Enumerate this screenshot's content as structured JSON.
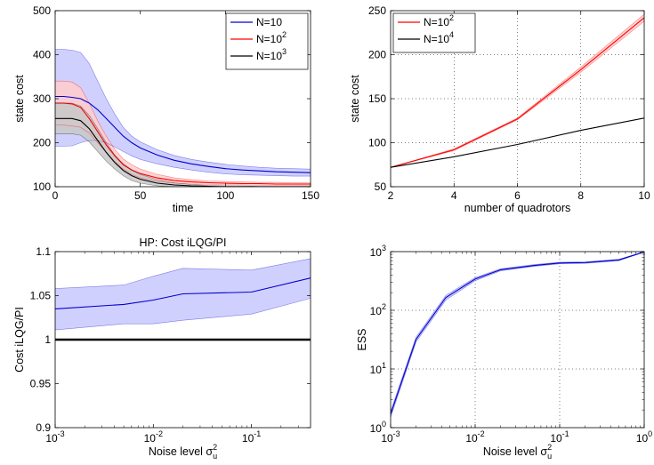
{
  "colors": {
    "blue": "#0000cc",
    "blue_fill": "#c8c8ff",
    "red": "#ff0000",
    "red_fill": "#ffcccc",
    "black": "#000000",
    "gray_fill": "#c8c8c8"
  },
  "chart_data": [
    {
      "type": "line",
      "title": "",
      "xlabel": "time",
      "ylabel": "state cost",
      "xlim": [
        0,
        150
      ],
      "ylim": [
        100,
        500
      ],
      "xticks": [
        0,
        50,
        100,
        150
      ],
      "yticks": [
        100,
        200,
        300,
        400,
        500
      ],
      "xscale": "linear",
      "yscale": "linear",
      "grid": false,
      "legend_position": "top-right",
      "x": [
        0,
        5,
        10,
        15,
        20,
        25,
        30,
        35,
        40,
        45,
        50,
        60,
        70,
        80,
        90,
        100,
        110,
        120,
        130,
        140,
        150
      ],
      "series": [
        {
          "name": "N=10",
          "name_base": "N=10",
          "name_sup": "",
          "color": "#0000cc",
          "fill": "#c8c8ff",
          "mean": [
            305,
            305,
            303,
            300,
            290,
            275,
            255,
            235,
            215,
            200,
            188,
            172,
            160,
            152,
            146,
            141,
            138,
            136,
            134,
            133,
            132
          ],
          "upper": [
            412,
            412,
            410,
            405,
            380,
            340,
            300,
            265,
            235,
            215,
            202,
            184,
            171,
            162,
            156,
            151,
            147,
            144,
            142,
            141,
            140
          ],
          "lower": [
            192,
            192,
            193,
            200,
            205,
            205,
            200,
            190,
            180,
            170,
            162,
            152,
            144,
            138,
            133,
            129,
            127,
            126,
            125,
            124,
            124
          ]
        },
        {
          "name": "N=10^2",
          "name_base": "N=10",
          "name_sup": "2",
          "color": "#ff0000",
          "fill": "#ffcccc",
          "mean": [
            290,
            290,
            288,
            280,
            255,
            225,
            195,
            170,
            150,
            138,
            130,
            120,
            114,
            111,
            109,
            108,
            107,
            107,
            106,
            106,
            106
          ],
          "upper": [
            340,
            340,
            338,
            325,
            290,
            250,
            215,
            185,
            163,
            150,
            140,
            128,
            120,
            116,
            113,
            112,
            111,
            110,
            110,
            109,
            109
          ],
          "lower": [
            240,
            240,
            238,
            235,
            222,
            200,
            178,
            157,
            140,
            128,
            120,
            112,
            108,
            106,
            105,
            104,
            104,
            103,
            103,
            103,
            103
          ]
        },
        {
          "name": "N=10^3",
          "name_base": "N=10",
          "name_sup": "3",
          "color": "#000000",
          "fill": "#c8c8c8",
          "mean": [
            255,
            255,
            255,
            250,
            232,
            205,
            178,
            155,
            137,
            125,
            117,
            108,
            104,
            102,
            101,
            100,
            100,
            100,
            100,
            100,
            100
          ],
          "upper": [
            290,
            290,
            290,
            283,
            262,
            232,
            200,
            172,
            152,
            138,
            128,
            116,
            109,
            105,
            103,
            102,
            102,
            101,
            101,
            101,
            101
          ],
          "lower": [
            220,
            220,
            220,
            217,
            202,
            180,
            158,
            140,
            125,
            114,
            108,
            102,
            100,
            99,
            99,
            99,
            99,
            99,
            99,
            99,
            99
          ]
        }
      ]
    },
    {
      "type": "line",
      "title": "",
      "xlabel": "number of quadrotors",
      "ylabel": "state cost",
      "xlim": [
        2,
        10
      ],
      "ylim": [
        50,
        250
      ],
      "xticks": [
        2,
        4,
        6,
        8,
        10
      ],
      "yticks": [
        50,
        100,
        150,
        200,
        250
      ],
      "xscale": "linear",
      "yscale": "linear",
      "grid": true,
      "legend_position": "top-left",
      "x": [
        2,
        4,
        6,
        8,
        10
      ],
      "series": [
        {
          "name": "N=10^2",
          "name_base": "N=10",
          "name_sup": "2",
          "color": "#ff0000",
          "fill": "#ffcccc",
          "mean": [
            72,
            92,
            127,
            183,
            242
          ],
          "upper": [
            72,
            93,
            128,
            186,
            246
          ],
          "lower": [
            72,
            91,
            126,
            180,
            238
          ]
        },
        {
          "name": "N=10^4",
          "name_base": "N=10",
          "name_sup": "4",
          "color": "#000000",
          "fill": "",
          "mean": [
            72,
            84,
            98,
            114,
            128
          ],
          "upper": [
            72,
            84,
            98,
            114,
            128
          ],
          "lower": [
            72,
            84,
            98,
            114,
            128
          ]
        }
      ]
    },
    {
      "type": "line",
      "title": "HP: Cost iLQG/PI",
      "xlabel": "Noise level σ_u^2",
      "xlabel_base": "Noise level σ",
      "xlabel_sup": "2",
      "xlabel_sub": "u",
      "ylabel": "Cost iLQG/PI",
      "xlim": [
        0.001,
        0.4
      ],
      "ylim": [
        0.9,
        1.1
      ],
      "xticks": [
        0.001,
        0.01,
        0.1
      ],
      "xtick_exponents": [
        "-3",
        "-2",
        "-1"
      ],
      "yticks": [
        0.9,
        0.95,
        1,
        1.05,
        1.1
      ],
      "yticklabels": [
        "0.9",
        "0.95",
        "1",
        "1.05",
        "1.1"
      ],
      "xscale": "log",
      "yscale": "linear",
      "grid": false,
      "x": [
        0.001,
        0.005,
        0.01,
        0.02,
        0.1,
        0.4
      ],
      "series": [
        {
          "name": "",
          "color": "#0000cc",
          "fill": "#c8c8ff",
          "mean": [
            1.035,
            1.04,
            1.045,
            1.052,
            1.054,
            1.07
          ],
          "upper": [
            1.058,
            1.062,
            1.072,
            1.081,
            1.079,
            1.092
          ],
          "lower": [
            1.011,
            1.018,
            1.018,
            1.022,
            1.029,
            1.047
          ]
        },
        {
          "name": "",
          "color": "#000000",
          "fill": "",
          "line_width": 2.5,
          "mean": [
            1,
            1,
            1,
            1,
            1,
            1
          ],
          "upper": [
            1,
            1,
            1,
            1,
            1,
            1
          ],
          "lower": [
            1,
            1,
            1,
            1,
            1,
            1
          ]
        }
      ]
    },
    {
      "type": "line",
      "title": "",
      "xlabel": "Noise level σ_u^2",
      "xlabel_base": "Noise level σ",
      "xlabel_sup": "2",
      "xlabel_sub": "u",
      "ylabel": "ESS",
      "xlim": [
        0.001,
        1
      ],
      "ylim": [
        1,
        1000
      ],
      "xticks": [
        0.001,
        0.01,
        0.1,
        1
      ],
      "xtick_exponents": [
        "-3",
        "-2",
        "-1",
        "0"
      ],
      "yticks": [
        1,
        10,
        100,
        1000
      ],
      "ytick_exponents": [
        "0",
        "1",
        "2",
        "3"
      ],
      "xscale": "log",
      "yscale": "log",
      "grid": true,
      "x": [
        0.001,
        0.002,
        0.0045,
        0.01,
        0.02,
        0.05,
        0.1,
        0.2,
        0.5,
        1
      ],
      "series": [
        {
          "name": "ESS",
          "color": "#0000cc",
          "fill": "#c8c8ff",
          "mean": [
            1.7,
            32,
            165,
            340,
            490,
            580,
            640,
            650,
            720,
            990
          ],
          "upper": [
            1.9,
            35,
            180,
            360,
            510,
            600,
            660,
            670,
            740,
            1000
          ],
          "lower": [
            1.5,
            29,
            150,
            320,
            470,
            560,
            620,
            630,
            700,
            980
          ]
        }
      ]
    }
  ]
}
